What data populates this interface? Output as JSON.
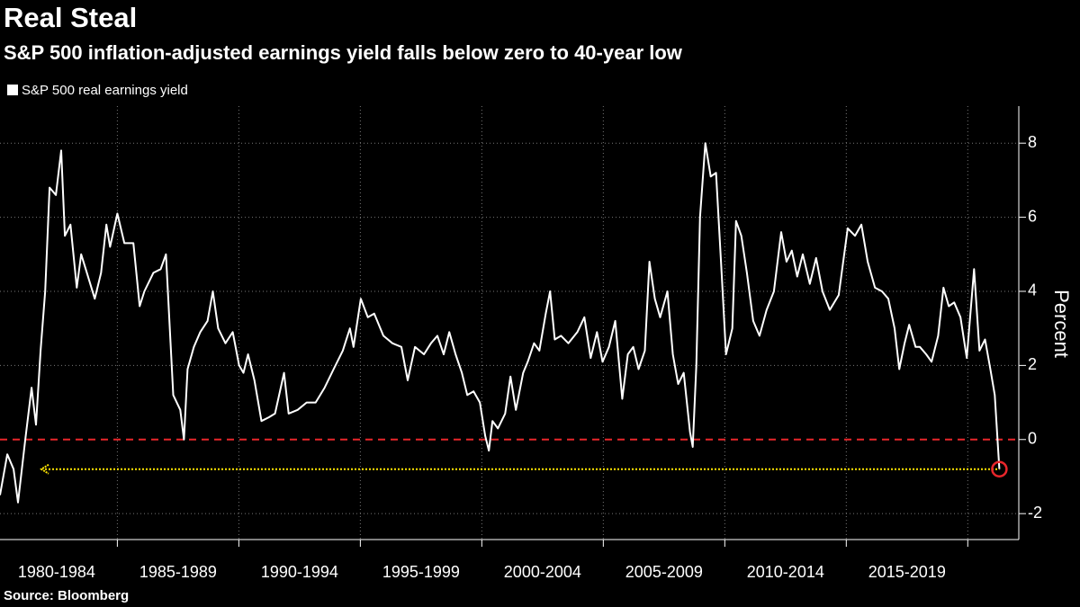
{
  "chart_data": {
    "type": "line",
    "title": "Real Steal",
    "subtitle": "S&P 500 inflation-adjusted earnings yield falls below zero to 40-year low",
    "y_label": "Percent",
    "source": "Source: Bloomberg",
    "periods": [
      "1980-1984",
      "1985-1989",
      "1990-1994",
      "1995-1999",
      "2000-2004",
      "2005-2009",
      "2010-2014",
      "2015-2019"
    ],
    "period_starts": [
      1980,
      1985,
      1990,
      1995,
      2000,
      2005,
      2010,
      2015
    ],
    "xlim": [
      1980.17,
      2022.1
    ],
    "xticks": [
      1985,
      1990,
      1995,
      2000,
      2005,
      2010,
      2015,
      2020
    ],
    "ylim": [
      -2.7,
      9
    ],
    "yticks": [
      -2,
      0,
      2,
      4,
      6,
      8
    ],
    "grid": true,
    "zero_line_color": "#e8262b",
    "low_marker_color": "#ffe600",
    "low_circle_color": "#e8262b",
    "x": [
      1980.17,
      1980.47,
      1980.73,
      1980.91,
      1981.21,
      1981.47,
      1981.65,
      1981.84,
      1982.03,
      1982.21,
      1982.47,
      1982.69,
      1982.84,
      1983.07,
      1983.33,
      1983.51,
      1983.7,
      1984.07,
      1984.33,
      1984.55,
      1984.7,
      1985.0,
      1985.29,
      1985.66,
      1985.92,
      1986.11,
      1986.48,
      1986.78,
      1987.0,
      1987.3,
      1987.59,
      1987.74,
      1987.89,
      1988.15,
      1988.41,
      1988.71,
      1988.93,
      1989.15,
      1989.45,
      1989.75,
      1990.01,
      1990.19,
      1990.38,
      1990.64,
      1990.93,
      1991.23,
      1991.49,
      1991.86,
      1992.05,
      1992.42,
      1992.79,
      1993.16,
      1993.53,
      1993.9,
      1994.28,
      1994.57,
      1994.72,
      1995.02,
      1995.31,
      1995.57,
      1995.95,
      1996.32,
      1996.69,
      1996.95,
      1997.25,
      1997.62,
      1997.91,
      1998.17,
      1998.43,
      1998.66,
      1998.92,
      1999.18,
      1999.4,
      1999.66,
      1999.92,
      2000.14,
      2000.29,
      2000.44,
      2000.66,
      2000.96,
      2001.18,
      2001.4,
      2001.7,
      2001.89,
      2002.15,
      2002.37,
      2002.63,
      2002.81,
      2003.0,
      2003.26,
      2003.56,
      2003.93,
      2004.22,
      2004.48,
      2004.74,
      2004.97,
      2005.23,
      2005.49,
      2005.78,
      2006.01,
      2006.23,
      2006.45,
      2006.71,
      2006.9,
      2007.12,
      2007.34,
      2007.64,
      2007.86,
      2008.08,
      2008.31,
      2008.57,
      2008.68,
      2008.83,
      2008.98,
      2009.2,
      2009.42,
      2009.64,
      2009.87,
      2010.05,
      2010.31,
      2010.46,
      2010.68,
      2010.91,
      2011.17,
      2011.43,
      2011.72,
      2012.02,
      2012.32,
      2012.54,
      2012.76,
      2012.98,
      2013.21,
      2013.5,
      2013.76,
      2014.02,
      2014.32,
      2014.69,
      2015.06,
      2015.36,
      2015.62,
      2015.88,
      2016.18,
      2016.47,
      2016.73,
      2016.99,
      2017.18,
      2017.4,
      2017.59,
      2017.85,
      2018.03,
      2018.29,
      2018.51,
      2018.78,
      2019.0,
      2019.22,
      2019.44,
      2019.7,
      2019.96,
      2020.26,
      2020.48,
      2020.71,
      2020.93,
      2021.11,
      2021.3
    ],
    "series": [
      {
        "name": "S&P 500 real earnings yield",
        "color": "#ffffff",
        "values": [
          -1.5,
          -0.4,
          -0.8,
          -1.7,
          0,
          1.4,
          0.4,
          2.4,
          4,
          6.8,
          6.6,
          7.8,
          5.5,
          5.8,
          4.1,
          5,
          4.6,
          3.8,
          4.5,
          5.8,
          5.2,
          6.1,
          5.3,
          5.3,
          3.6,
          4.0,
          4.5,
          4.6,
          5.0,
          1.2,
          0.8,
          0,
          1.9,
          2.5,
          2.9,
          3.2,
          4.0,
          3.0,
          2.6,
          2.9,
          2.0,
          1.8,
          2.3,
          1.6,
          0.5,
          0.6,
          0.7,
          1.8,
          0.7,
          0.8,
          1.0,
          1.0,
          1.4,
          1.9,
          2.4,
          3.0,
          2.5,
          3.8,
          3.3,
          3.4,
          2.8,
          2.6,
          2.5,
          1.6,
          2.5,
          2.3,
          2.6,
          2.8,
          2.3,
          2.9,
          2.3,
          1.8,
          1.2,
          1.3,
          1.0,
          0.1,
          -0.3,
          0.5,
          0.3,
          0.7,
          1.7,
          0.8,
          1.8,
          2.1,
          2.6,
          2.4,
          3.4,
          4.0,
          2.7,
          2.8,
          2.6,
          2.9,
          3.3,
          2.2,
          2.9,
          2.1,
          2.5,
          3.2,
          1.1,
          2.3,
          2.5,
          1.9,
          2.4,
          4.8,
          3.8,
          3.3,
          4.0,
          2.3,
          1.5,
          1.8,
          0.2,
          -0.2,
          2.0,
          6.0,
          8.0,
          7.1,
          7.2,
          4.5,
          2.3,
          3.0,
          5.9,
          5.5,
          4.5,
          3.2,
          2.8,
          3.5,
          4.0,
          5.6,
          4.8,
          5.1,
          4.4,
          5.0,
          4.2,
          4.9,
          4.0,
          3.5,
          3.9,
          5.7,
          5.5,
          5.8,
          4.8,
          4.1,
          4.0,
          3.8,
          3.0,
          1.9,
          2.6,
          3.1,
          2.5,
          2.5,
          2.3,
          2.1,
          2.8,
          4.1,
          3.6,
          3.7,
          3.3,
          2.2,
          4.6,
          2.4,
          2.7,
          1.9,
          1.2,
          -0.8
        ]
      }
    ]
  }
}
